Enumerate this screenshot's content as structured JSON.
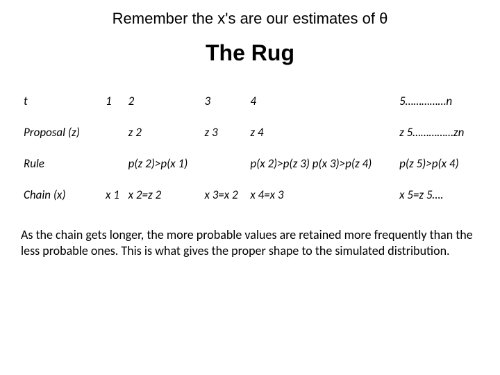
{
  "heading1": "Remember the x's are our estimates of θ",
  "heading2": "The Rug",
  "table": {
    "rows": [
      {
        "label": "t",
        "c1": "1",
        "c2": "2",
        "c3": "3",
        "c4": "4",
        "c5": "5……………n"
      },
      {
        "label": "Proposal (z)",
        "c1": "",
        "c2": "z 2",
        "c3": "z 3",
        "c4": "z 4",
        "c5": "z 5……………zn"
      },
      {
        "label": "Rule",
        "c1": "",
        "c2": "p(z 2)>p(x 1)",
        "c3": "",
        "c4": "p(x 2)>p(z 3) p(x 3)>p(z 4)",
        "c5": "p(z 5)>p(x 4)"
      },
      {
        "label": "Chain (x)",
        "c1": "x 1",
        "c2": "x 2=z 2",
        "c3": "x 3=x 2",
        "c4": "x 4=x 3",
        "c5": "x 5=z 5…."
      }
    ]
  },
  "paragraph": "As the chain gets longer, the more probable values are retained more frequently than the less probable ones. This is what gives the proper shape to the simulated distribution."
}
